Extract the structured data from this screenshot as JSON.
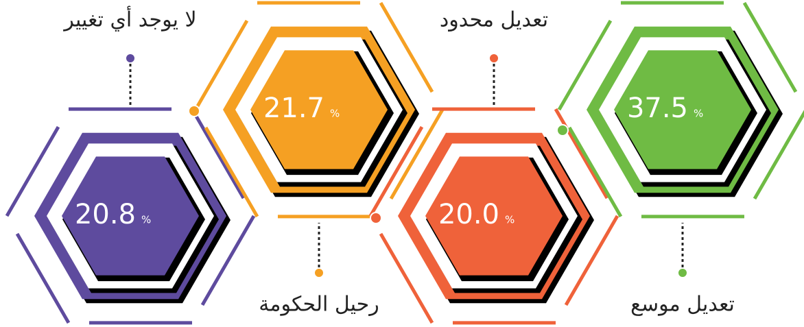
{
  "chart_data": {
    "type": "hexagon",
    "categories": [
      "لا يوجد أي تغيير",
      "رحيل الحكومة",
      "تعديل محدود",
      "تعديل موسع"
    ],
    "values": [
      20.8,
      21.7,
      20,
      37.5
    ],
    "value_labels": [
      "20.8",
      "21.7",
      "20.0",
      "37.5"
    ],
    "unit_label": "%",
    "colors": [
      "#5e4b9e",
      "#f5a023",
      "#ef623a",
      "#6fbb44"
    ]
  }
}
